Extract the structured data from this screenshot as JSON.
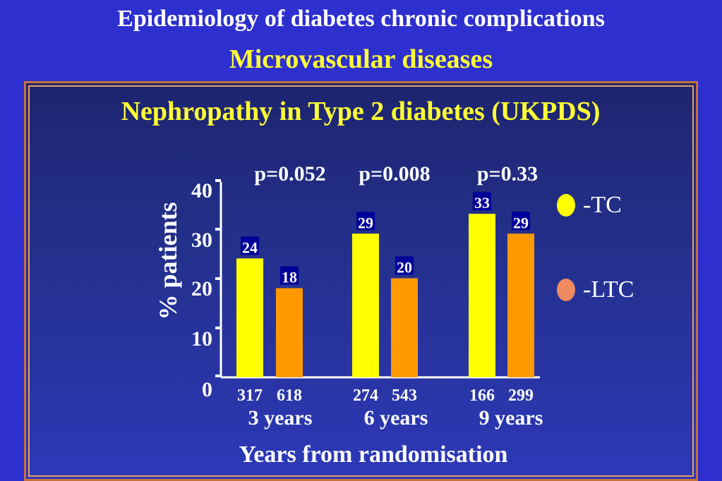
{
  "header": {
    "title": "Epidemiology of diabetes chronic complications",
    "subtitle": "Microvascular diseases"
  },
  "colors": {
    "tc": "#ffff00",
    "ltc": "#ff9900",
    "label_bg": "#000099",
    "title_yellow": "#ffff33"
  },
  "chart_data": {
    "type": "bar",
    "title": "Nephropathy in Type 2 diabetes (UKPDS)",
    "xlabel": "Years from randomisation",
    "ylabel": "% patients",
    "ylim": [
      0,
      40
    ],
    "yticks": [
      "0",
      "10",
      "20",
      "30",
      "40"
    ],
    "categories": [
      "3 years",
      "6 years",
      "9 years"
    ],
    "series": [
      {
        "name": "-TC",
        "values": [
          24,
          29,
          33
        ],
        "n": [
          "317",
          "274",
          "166"
        ]
      },
      {
        "name": "-LTC",
        "values": [
          18,
          20,
          29
        ],
        "n": [
          "618",
          "543",
          "299"
        ]
      }
    ],
    "value_labels": [
      [
        "24",
        "29",
        "33"
      ],
      [
        "18",
        "20",
        "29"
      ]
    ],
    "p_values": [
      "p=0.052",
      "p=0.008",
      "p=0.33"
    ],
    "legend_position": "right"
  }
}
